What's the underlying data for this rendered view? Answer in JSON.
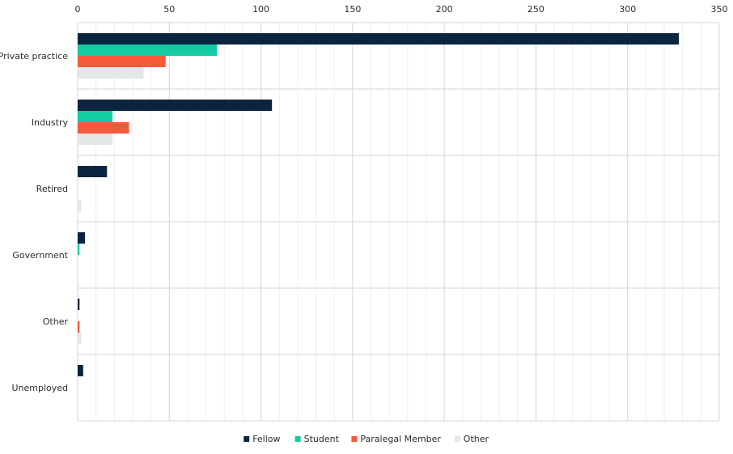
{
  "chart_data": {
    "type": "bar",
    "orientation": "horizontal",
    "title": "",
    "xlabel": "",
    "ylabel": "",
    "xlim": [
      0,
      350
    ],
    "x_ticks": [
      "0",
      "50",
      "100",
      "150",
      "200",
      "250",
      "300",
      "350"
    ],
    "x_tick_values": [
      0,
      50,
      100,
      150,
      200,
      250,
      300,
      350
    ],
    "x_axis_position": "top",
    "grid": true,
    "legend_position": "bottom",
    "categories": [
      "Private practice",
      "Industry",
      "Retired",
      "Government",
      "Other",
      "Unemployed"
    ],
    "series": [
      {
        "name": "Fellow",
        "color": "#0b2540",
        "values": [
          328,
          106,
          16,
          4,
          1,
          3
        ]
      },
      {
        "name": "Student",
        "color": "#14cca4",
        "values": [
          76,
          19,
          0,
          1,
          0,
          0
        ]
      },
      {
        "name": "Paralegal Member",
        "color": "#f55a3c",
        "values": [
          48,
          28,
          0,
          0,
          1,
          0
        ]
      },
      {
        "name": "Other",
        "color": "#e3e7e7",
        "values": [
          36,
          19,
          2,
          0,
          2,
          0
        ]
      }
    ]
  }
}
